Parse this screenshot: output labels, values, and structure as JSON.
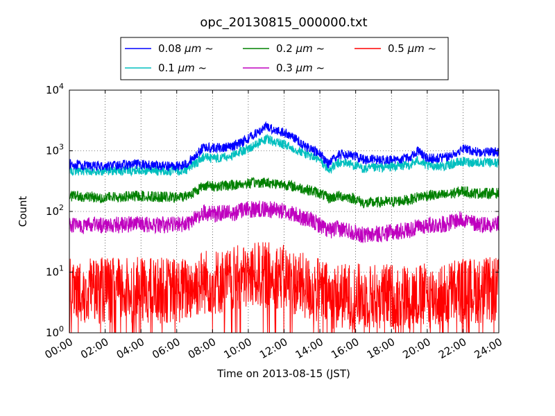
{
  "chart_data": {
    "type": "line",
    "title": "opc_20130815_000000.txt",
    "xlabel": "Time on 2013-08-15 (JST)",
    "ylabel": "Count",
    "x_unit": "hours",
    "xlim": [
      0,
      24
    ],
    "ylim": [
      1,
      10000
    ],
    "yscale": "log",
    "grid": true,
    "legend_position": "top",
    "x_ticks": [
      {
        "value": 0,
        "label": "00:00"
      },
      {
        "value": 2,
        "label": "02:00"
      },
      {
        "value": 4,
        "label": "04:00"
      },
      {
        "value": 6,
        "label": "06:00"
      },
      {
        "value": 8,
        "label": "08:00"
      },
      {
        "value": 10,
        "label": "10:00"
      },
      {
        "value": 12,
        "label": "12:00"
      },
      {
        "value": 14,
        "label": "14:00"
      },
      {
        "value": 16,
        "label": "16:00"
      },
      {
        "value": 18,
        "label": "18:00"
      },
      {
        "value": 20,
        "label": "20:00"
      },
      {
        "value": 22,
        "label": "22:00"
      },
      {
        "value": 24,
        "label": "24:00"
      }
    ],
    "y_ticks": [
      {
        "value": 1,
        "base": "10",
        "exp": "0"
      },
      {
        "value": 10,
        "base": "10",
        "exp": "1"
      },
      {
        "value": 100,
        "base": "10",
        "exp": "2"
      },
      {
        "value": 1000,
        "base": "10",
        "exp": "3"
      },
      {
        "value": 10000,
        "base": "10",
        "exp": "4"
      }
    ],
    "x": [
      0,
      1,
      2,
      3,
      4,
      5,
      6,
      6.5,
      7,
      7.5,
      8,
      9,
      9.5,
      10,
      10.5,
      11,
      11.5,
      12,
      12.5,
      13,
      13.5,
      14,
      14.5,
      15,
      15.5,
      16,
      16.5,
      17,
      18,
      19,
      19.5,
      20,
      20.5,
      21,
      21.5,
      22,
      22.5,
      23,
      24
    ],
    "series": [
      {
        "name": "0.08",
        "unit": "μm",
        "suffix": "~",
        "color": "#0000ff",
        "noise": 0.08,
        "values": [
          600,
          560,
          560,
          580,
          600,
          570,
          560,
          600,
          800,
          1150,
          1100,
          1150,
          1350,
          1600,
          2000,
          2500,
          2200,
          2000,
          1700,
          1300,
          1050,
          900,
          600,
          850,
          900,
          800,
          720,
          720,
          700,
          780,
          1000,
          750,
          750,
          780,
          880,
          1100,
          1000,
          950,
          950
        ]
      },
      {
        "name": "0.1",
        "unit": "μm",
        "suffix": "~",
        "color": "#00bfbf",
        "noise": 0.08,
        "values": [
          480,
          460,
          470,
          470,
          480,
          470,
          470,
          480,
          600,
          780,
          750,
          800,
          950,
          1100,
          1300,
          1550,
          1400,
          1250,
          1100,
          950,
          820,
          700,
          480,
          620,
          640,
          560,
          500,
          520,
          550,
          580,
          700,
          560,
          570,
          560,
          620,
          660,
          650,
          640,
          630
        ]
      },
      {
        "name": "0.2",
        "unit": "μm",
        "suffix": "~",
        "color": "#008000",
        "noise": 0.09,
        "values": [
          180,
          175,
          170,
          175,
          180,
          175,
          170,
          180,
          210,
          270,
          260,
          270,
          280,
          290,
          300,
          300,
          290,
          280,
          260,
          240,
          220,
          200,
          165,
          180,
          175,
          160,
          135,
          140,
          145,
          155,
          175,
          185,
          185,
          185,
          200,
          220,
          200,
          200,
          200
        ]
      },
      {
        "name": "0.3",
        "unit": "μm",
        "suffix": "~",
        "color": "#bf00bf",
        "noise": 0.14,
        "values": [
          60,
          58,
          60,
          60,
          62,
          60,
          60,
          62,
          75,
          95,
          92,
          95,
          100,
          105,
          110,
          110,
          105,
          100,
          90,
          80,
          70,
          60,
          48,
          52,
          50,
          45,
          40,
          42,
          45,
          50,
          55,
          60,
          60,
          62,
          70,
          75,
          65,
          62,
          62
        ]
      },
      {
        "name": "0.5",
        "unit": "μm",
        "suffix": "~",
        "color": "#ff0000",
        "noise": 0.55,
        "values": [
          5,
          5,
          5,
          5,
          5,
          5,
          5,
          5,
          6,
          7,
          7,
          7,
          8,
          8,
          9,
          9,
          9,
          8,
          7,
          6,
          5,
          5,
          4,
          4,
          4,
          4,
          4,
          4,
          4,
          4,
          4,
          4,
          4,
          4,
          5,
          5,
          5,
          5,
          5
        ]
      }
    ]
  }
}
